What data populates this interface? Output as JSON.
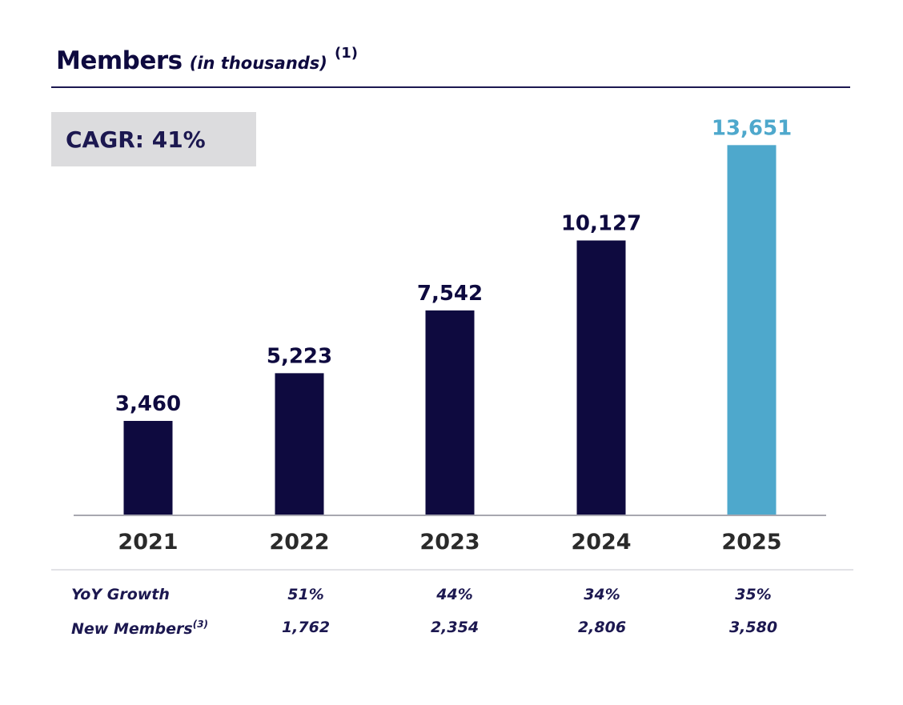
{
  "chart_data": {
    "type": "bar",
    "title": "Members",
    "title_units": "(in thousands)",
    "title_footnote": "(1)",
    "categories": [
      "2021",
      "2022",
      "2023",
      "2024",
      "2025"
    ],
    "values": [
      3460,
      5223,
      7542,
      10127,
      13651
    ],
    "value_labels": [
      "3,460",
      "5,223",
      "7,542",
      "10,127",
      "13,651"
    ],
    "ylim": [
      0,
      14400
    ],
    "grid": false,
    "colors": {
      "default_bar": "#0e0a3f",
      "highlight_bar": "#4ea8cc",
      "highlight_label": "#4ea8cc",
      "axis": "#a7a7b0"
    },
    "highlight_index": 4,
    "annotation": "CAGR: 41%"
  },
  "table": {
    "rows": [
      {
        "label": "YoY Growth",
        "footnote": "",
        "values": [
          "",
          "51%",
          "44%",
          "34%",
          "35%"
        ]
      },
      {
        "label": "New Members",
        "footnote": "(3)",
        "values": [
          "",
          "1,762",
          "2,354",
          "2,806",
          "3,580"
        ]
      }
    ]
  }
}
